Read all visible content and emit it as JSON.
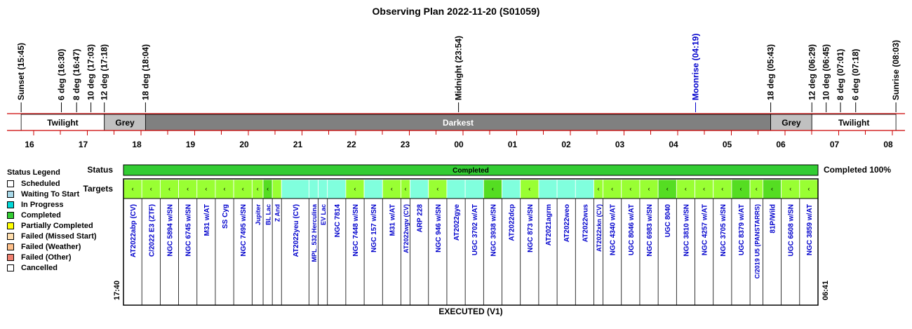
{
  "title": "Observing Plan 2022-11-20 (S01059)",
  "twilight_events": [
    {
      "label": "Sunset (15:45)",
      "t": -134,
      "color": "#000000"
    },
    {
      "label": "6 deg (16:30)",
      "t": -89,
      "color": "#000000"
    },
    {
      "label": "8 deg (16:47)",
      "t": -72,
      "color": "#000000"
    },
    {
      "label": "10 deg (17:03)",
      "t": -56,
      "color": "#000000"
    },
    {
      "label": "12 deg (17:18)",
      "t": -41,
      "color": "#000000"
    },
    {
      "label": "18 deg (18:04)",
      "t": 5,
      "color": "#000000"
    },
    {
      "label": "Midnight (23:54)",
      "t": 355,
      "color": "#000000"
    },
    {
      "label": "Moonrise (04:19)",
      "t": 620,
      "color": "#0000cc"
    },
    {
      "label": "18 deg (05:43)",
      "t": 704,
      "color": "#000000"
    },
    {
      "label": "12 deg (06:29)",
      "t": 750,
      "color": "#000000"
    },
    {
      "label": "10 deg (06:45)",
      "t": 766,
      "color": "#000000"
    },
    {
      "label": "8 deg (07:01)",
      "t": 782,
      "color": "#000000"
    },
    {
      "label": "6 deg (07:18)",
      "t": 799,
      "color": "#000000"
    },
    {
      "label": "Sunrise (08:03)",
      "t": 844,
      "color": "#000000"
    }
  ],
  "sky_bands": [
    {
      "label": "Twilight",
      "from": -134,
      "to": -41,
      "fill": "#ffffff",
      "text_color": "#000000"
    },
    {
      "label": "Grey",
      "from": -41,
      "to": 5,
      "fill": "#c0c0c0",
      "text_color": "#000000"
    },
    {
      "label": "Darkest",
      "from": 5,
      "to": 704,
      "fill": "#808080",
      "text_color": "#ffffff"
    },
    {
      "label": "Grey",
      "from": 704,
      "to": 750,
      "fill": "#c0c0c0",
      "text_color": "#000000"
    },
    {
      "label": "Twilight",
      "from": 750,
      "to": 844,
      "fill": "#ffffff",
      "text_color": "#000000"
    }
  ],
  "hour_ticks": [
    {
      "label": "16",
      "t": -120
    },
    {
      "label": "17",
      "t": -60
    },
    {
      "label": "18",
      "t": 0
    },
    {
      "label": "19",
      "t": 60
    },
    {
      "label": "20",
      "t": 120
    },
    {
      "label": "21",
      "t": 180
    },
    {
      "label": "22",
      "t": 240
    },
    {
      "label": "23",
      "t": 300
    },
    {
      "label": "00",
      "t": 360
    },
    {
      "label": "01",
      "t": 420
    },
    {
      "label": "02",
      "t": 480
    },
    {
      "label": "03",
      "t": 540
    },
    {
      "label": "04",
      "t": 600
    },
    {
      "label": "05",
      "t": 660
    },
    {
      "label": "06",
      "t": 720
    },
    {
      "label": "07",
      "t": 780
    },
    {
      "label": "08",
      "t": 840
    }
  ],
  "status_row": {
    "label": "Status",
    "text": "Completed",
    "summary": "Completed 100%",
    "fill": "#33cc33"
  },
  "targets_label": "Targets",
  "window": {
    "start": "17:40",
    "end": "06:41"
  },
  "footer": "EXECUTED (V1)",
  "legend": {
    "title": "Status Legend",
    "items": [
      {
        "label": "Scheduled",
        "color": "#ffffff"
      },
      {
        "label": "Waiting To Start",
        "color": "#a9d8e8"
      },
      {
        "label": "In Progress",
        "color": "#00d8d8"
      },
      {
        "label": "Completed",
        "color": "#33cc33"
      },
      {
        "label": "Partially Completed",
        "color": "#ffff00"
      },
      {
        "label": "Failed (Missed Start)",
        "color": "#ffdead"
      },
      {
        "label": "Failed (Weather)",
        "color": "#ffc08a"
      },
      {
        "label": "Failed (Other)",
        "color": "#f08070"
      },
      {
        "label": "Cancelled",
        "color": "#ffffff"
      }
    ]
  },
  "targets": [
    {
      "name": "AT2022abp (CV)",
      "w": 1,
      "fill": "#99ff33",
      "mark": "‹"
    },
    {
      "name": "C/2022 E3 (ZTF)",
      "w": 1,
      "fill": "#99ff33",
      "mark": "‹"
    },
    {
      "name": "NGC 5894 w/SN",
      "w": 1,
      "fill": "#99ff33",
      "mark": "‹"
    },
    {
      "name": "NGC 6745 w/SN",
      "w": 1,
      "fill": "#99ff33",
      "mark": "‹"
    },
    {
      "name": "M31 w/AT",
      "w": 1,
      "fill": "#99ff33",
      "mark": "‹"
    },
    {
      "name": "SS Cyg",
      "w": 1,
      "fill": "#99ff33",
      "mark": "‹"
    },
    {
      "name": "NGC 7495 w/SN",
      "w": 1,
      "fill": "#99ff33",
      "mark": "‹"
    },
    {
      "name": "Jupiter",
      "w": 0.6,
      "fill": "#99ff33",
      "mark": "‹"
    },
    {
      "name": "BL Lac",
      "w": 0.5,
      "fill": "#55dd22",
      "mark": "‹"
    },
    {
      "name": "Z And",
      "w": 0.5,
      "fill": "#99ff33",
      "mark": ""
    },
    {
      "name": "AT2022yeu (CV)",
      "w": 1.5,
      "fill": "#80ffdd",
      "mark": ""
    },
    {
      "name": "MPL_532 Herculina",
      "w": 0.5,
      "fill": "#80ffdd",
      "mark": ""
    },
    {
      "name": "EV Lac",
      "w": 0.5,
      "fill": "#80ffdd",
      "mark": ""
    },
    {
      "name": "NGC 7814",
      "w": 1,
      "fill": "#80ffdd",
      "mark": ""
    },
    {
      "name": "NGC 7448 w/SN",
      "w": 1,
      "fill": "#99ff33",
      "mark": "‹"
    },
    {
      "name": "NGC 157 w/SN",
      "w": 1,
      "fill": "#80ffdd",
      "mark": ""
    },
    {
      "name": "M31 w/AT",
      "w": 1,
      "fill": "#99ff33",
      "mark": "‹"
    },
    {
      "name": "AT2022wgv (CV)",
      "w": 0.5,
      "fill": "#99ff33",
      "mark": "‹"
    },
    {
      "name": "ARP 228",
      "w": 1,
      "fill": "#80ffdd",
      "mark": ""
    },
    {
      "name": "NGC 946 w/SN",
      "w": 1,
      "fill": "#99ff33",
      "mark": "‹"
    },
    {
      "name": "AT2022gye",
      "w": 1,
      "fill": "#80ffdd",
      "mark": ""
    },
    {
      "name": "UGC 3702 w/AT",
      "w": 1,
      "fill": "#80ffdd",
      "mark": ""
    },
    {
      "name": "NGC 3938 w/SN",
      "w": 1,
      "fill": "#55dd22",
      "mark": "‹"
    },
    {
      "name": "AT2022dcp",
      "w": 1,
      "fill": "#80ffdd",
      "mark": ""
    },
    {
      "name": "NGC 873 w/SN",
      "w": 1,
      "fill": "#99ff33",
      "mark": "‹"
    },
    {
      "name": "AT2021agrm",
      "w": 1,
      "fill": "#80ffdd",
      "mark": ""
    },
    {
      "name": "AT2022weo",
      "w": 1,
      "fill": "#80ffdd",
      "mark": ""
    },
    {
      "name": "AT2022wus",
      "w": 1,
      "fill": "#80ffdd",
      "mark": ""
    },
    {
      "name": "AT2022xkn (CV)",
      "w": 0.5,
      "fill": "#99ff33",
      "mark": "‹"
    },
    {
      "name": "NGC 4340 w/AT",
      "w": 1,
      "fill": "#99ff33",
      "mark": "‹"
    },
    {
      "name": "UGC 8046 w/AT",
      "w": 1,
      "fill": "#99ff33",
      "mark": "‹"
    },
    {
      "name": "NGC 6983 w/SN",
      "w": 1,
      "fill": "#99ff33",
      "mark": "‹"
    },
    {
      "name": "UGC 8040",
      "w": 1,
      "fill": "#55dd22",
      "mark": "‹"
    },
    {
      "name": "NGC 3810 w/SN",
      "w": 1,
      "fill": "#99ff33",
      "mark": "‹"
    },
    {
      "name": "NGC 4257 w/AT",
      "w": 1,
      "fill": "#99ff33",
      "mark": "‹"
    },
    {
      "name": "NGC 3705 w/SN",
      "w": 1,
      "fill": "#99ff33",
      "mark": "‹"
    },
    {
      "name": "UGC 8379 w/AT",
      "w": 1,
      "fill": "#55dd22",
      "mark": "‹"
    },
    {
      "name": "C/2019 U5 (PANSTARRS)",
      "w": 0.7,
      "fill": "#99ff33",
      "mark": "‹"
    },
    {
      "name": "81P/Wild",
      "w": 1,
      "fill": "#55dd22",
      "mark": "‹"
    },
    {
      "name": "UGC 6608 w/SN",
      "w": 1,
      "fill": "#99ff33",
      "mark": "‹"
    },
    {
      "name": "NGC 3859 w/AT",
      "w": 1,
      "fill": "#99ff33",
      "mark": "‹"
    }
  ]
}
